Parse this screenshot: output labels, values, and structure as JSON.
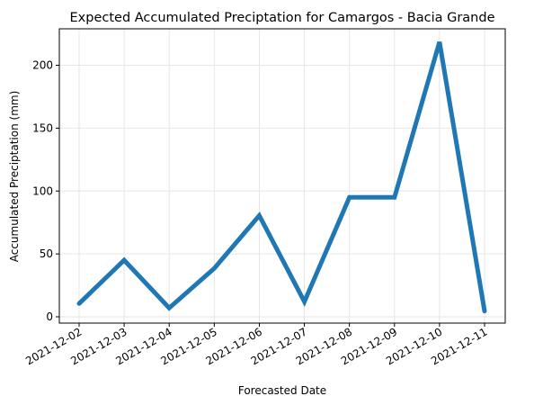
{
  "chart_data": {
    "type": "line",
    "title": "Expected Accumulated Preciptation for Camargos - Bacia Grande",
    "xlabel": "Forecasted Date",
    "ylabel": "Accumulated Preciptation (mm)",
    "x": [
      "2021-12-02",
      "2021-12-03",
      "2021-12-04",
      "2021-12-05",
      "2021-12-06",
      "2021-12-07",
      "2021-12-08",
      "2021-12-09",
      "2021-12-10",
      "2021-12-11"
    ],
    "series": [
      {
        "values": [
          10.5,
          45,
          7,
          38.5,
          80.5,
          12,
          95,
          95,
          218.5,
          4.5
        ],
        "color": "#1f77b4"
      }
    ],
    "ylim": [
      -5,
      229
    ],
    "yticks": [
      0,
      50,
      100,
      150,
      200
    ],
    "grid": true,
    "legend": "none"
  }
}
